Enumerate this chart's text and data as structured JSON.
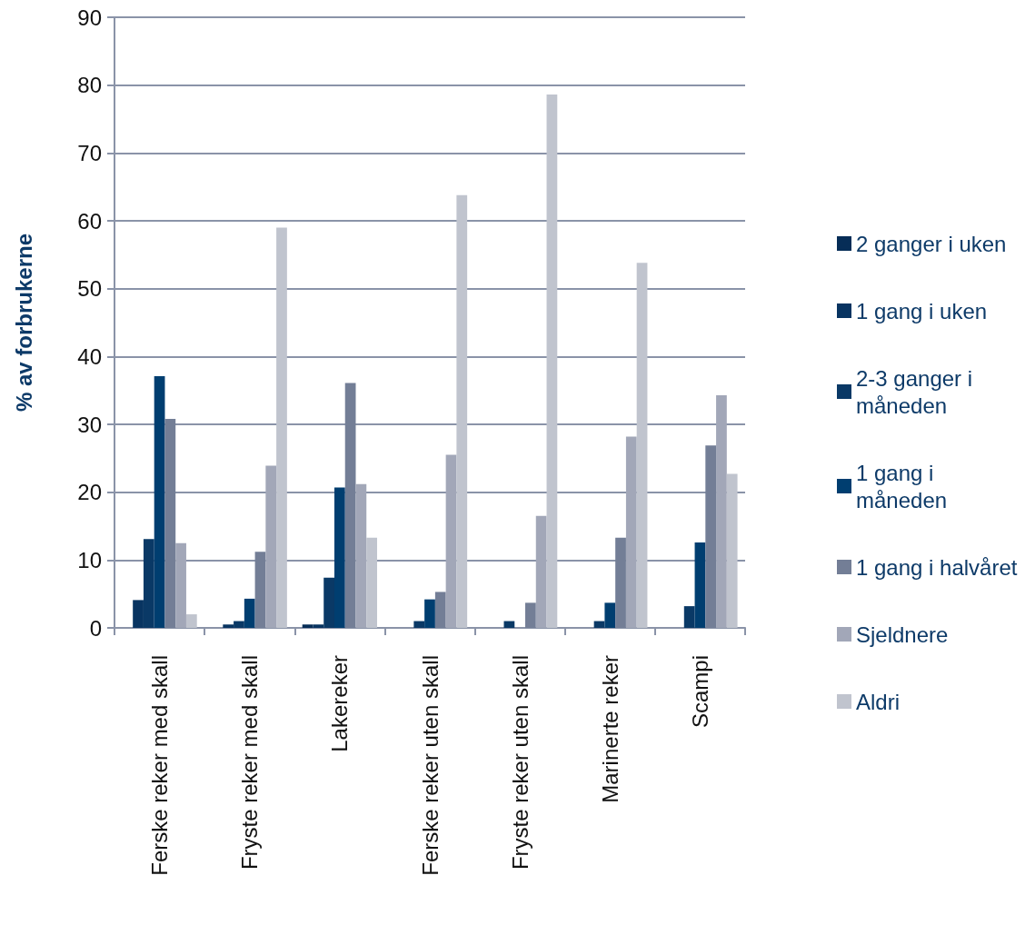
{
  "chart_data": {
    "type": "bar",
    "ylabel": "% av forbrukerne",
    "categories": [
      "Ferske reker med skall",
      "Fryste reker med skall",
      "Lakereker",
      "Ferske reker uten skall",
      "Fryste reker uten skall",
      "Marinerte reker",
      "Scampi"
    ],
    "series": [
      {
        "name": "2 ganger i uken",
        "color": "#062d57",
        "values": [
          null,
          null,
          0.5,
          null,
          null,
          null,
          null
        ]
      },
      {
        "name": "1 gang i uken",
        "color": "#083461",
        "values": [
          4.1,
          0.5,
          0.5,
          null,
          null,
          null,
          null
        ]
      },
      {
        "name": "2-3 ganger i måneden",
        "color": "#0a3966",
        "values": [
          13.1,
          1.0,
          7.4,
          1.0,
          1.0,
          1.0,
          3.2
        ]
      },
      {
        "name": "1 gang i måneden",
        "color": "#003e70",
        "values": [
          37.1,
          4.3,
          20.7,
          4.2,
          null,
          3.7,
          12.6
        ]
      },
      {
        "name": "1 gang i halvåret",
        "color": "#737e96",
        "values": [
          30.8,
          11.2,
          36.1,
          5.3,
          3.7,
          13.3,
          26.9
        ]
      },
      {
        "name": "Sjeldnere",
        "color": "#a2a7b8",
        "values": [
          12.5,
          23.9,
          21.2,
          25.5,
          16.5,
          28.2,
          34.3
        ]
      },
      {
        "name": "Aldri",
        "color": "#c0c4ce",
        "values": [
          2.0,
          59.0,
          13.3,
          63.8,
          78.6,
          53.8,
          22.7
        ]
      }
    ],
    "ylim": [
      0,
      90
    ],
    "yticks": [
      0,
      10,
      20,
      30,
      40,
      50,
      60,
      70,
      80,
      90
    ],
    "grid": "y",
    "legend": "right"
  }
}
